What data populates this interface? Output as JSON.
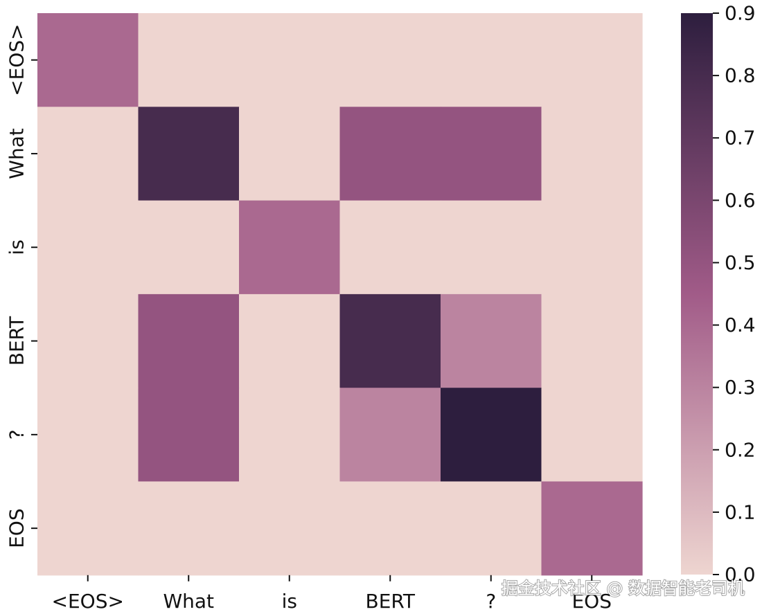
{
  "chart_data": {
    "type": "heatmap",
    "x_labels": [
      "<EOS>",
      "What",
      "is",
      "BERT",
      "?",
      "EOS"
    ],
    "y_labels": [
      "<EOS>",
      "What",
      "is",
      "BERT",
      "?",
      "EOS"
    ],
    "values": [
      [
        0.4,
        0.0,
        0.0,
        0.0,
        0.0,
        0.0
      ],
      [
        0.0,
        0.8,
        0.0,
        0.5,
        0.5,
        0.0
      ],
      [
        0.0,
        0.0,
        0.4,
        0.0,
        0.0,
        0.0
      ],
      [
        0.0,
        0.5,
        0.0,
        0.8,
        0.3,
        0.0
      ],
      [
        0.0,
        0.5,
        0.0,
        0.3,
        0.9,
        0.0
      ],
      [
        0.0,
        0.0,
        0.0,
        0.0,
        0.0,
        0.4
      ]
    ],
    "colorbar": {
      "min": 0.0,
      "max": 0.9,
      "ticks": [
        "0.0",
        "0.1",
        "0.2",
        "0.3",
        "0.4",
        "0.5",
        "0.6",
        "0.7",
        "0.8",
        "0.9"
      ],
      "color_low": "#EED5D0",
      "color_mid": "#A15B88",
      "color_high": "#2D1E3E"
    },
    "grid": false
  },
  "watermark": "掘金技术社区 @ 数据智能老司机"
}
